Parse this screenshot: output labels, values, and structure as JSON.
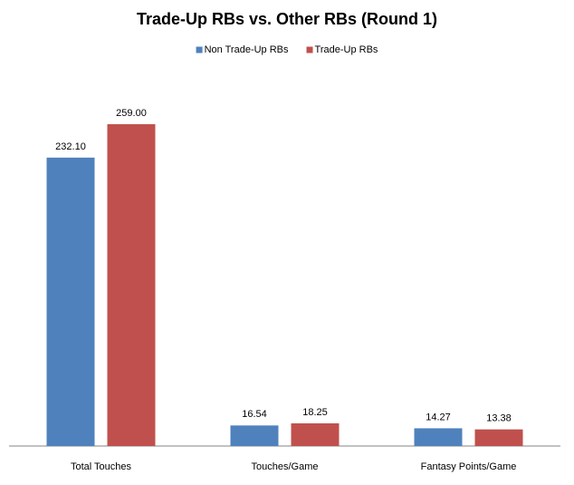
{
  "chart_data": {
    "type": "bar",
    "title": "Trade-Up RBs vs. Other RBs (Round 1)",
    "categories": [
      "Total Touches",
      "Touches/Game",
      "Fantasy Points/Game"
    ],
    "series": [
      {
        "name": "Non Trade-Up RBs",
        "color": "#4f81bd",
        "values": [
          232.1,
          16.54,
          14.27
        ],
        "value_labels": [
          "232.10",
          "16.54",
          "14.27"
        ]
      },
      {
        "name": "Trade-Up RBs",
        "color": "#c0504d",
        "values": [
          259,
          18.25,
          13.38
        ],
        "value_labels": [
          "259.00",
          "18.25",
          "13.38"
        ]
      }
    ],
    "legend": "top"
  }
}
